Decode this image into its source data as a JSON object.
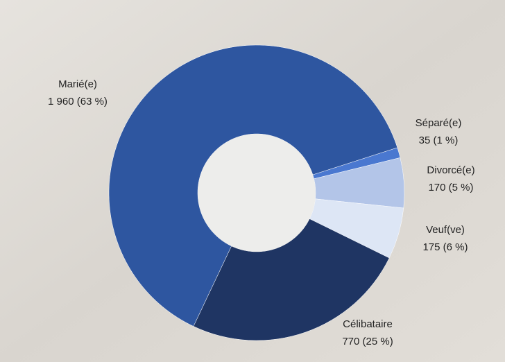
{
  "chart_data": {
    "type": "donut",
    "categories": [
      "Séparé(e)",
      "Divorcé(e)",
      "Veuf(ve)",
      "Célibataire",
      "Marié(e)"
    ],
    "values": [
      35,
      170,
      175,
      770,
      1960
    ],
    "value_labels": [
      "35 (1 %)",
      "170 (5 %)",
      "175 (6 %)",
      "770 (25 %)",
      "1 960 (63 %)"
    ],
    "colors": [
      "#4a78d0",
      "#b3c5e8",
      "#dde6f5",
      "#1f3563",
      "#2e56a0"
    ]
  }
}
